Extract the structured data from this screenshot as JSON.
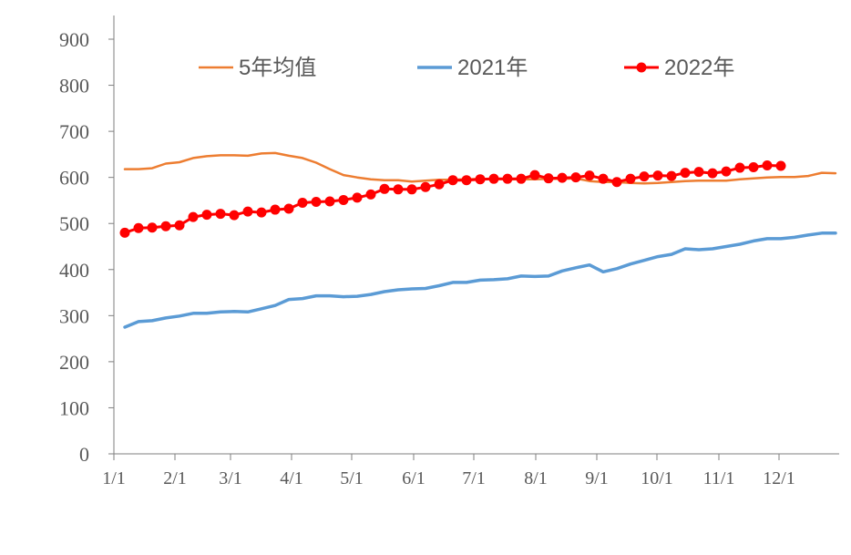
{
  "chart_data": {
    "type": "line",
    "title": "",
    "xlabel": "",
    "ylabel": "",
    "x_ticks": [
      "1/1",
      "2/1",
      "3/1",
      "4/1",
      "5/1",
      "6/1",
      "7/1",
      "8/1",
      "9/1",
      "10/1",
      "11/1",
      "12/1"
    ],
    "y_ticks": [
      "0",
      "100",
      "200",
      "300",
      "400",
      "500",
      "600",
      "700",
      "800",
      "900"
    ],
    "ylim": [
      0,
      900
    ],
    "x_unit": "week",
    "xlim": [
      1,
      53
    ],
    "grid": false,
    "legend_position": "top",
    "series": [
      {
        "name": "5年均值",
        "color": "#ED7D31",
        "marker": "none",
        "x": [
          1,
          2,
          3,
          4,
          5,
          6,
          7,
          8,
          9,
          10,
          11,
          12,
          13,
          14,
          15,
          16,
          17,
          18,
          19,
          20,
          21,
          22,
          23,
          24,
          25,
          26,
          27,
          28,
          29,
          30,
          31,
          32,
          33,
          34,
          35,
          36,
          37,
          38,
          39,
          40,
          41,
          42,
          43,
          44,
          45,
          46,
          47,
          48,
          49,
          50,
          51,
          52,
          53
        ],
        "values": [
          618,
          618,
          620,
          630,
          633,
          642,
          646,
          648,
          648,
          647,
          652,
          653,
          647,
          642,
          632,
          618,
          605,
          600,
          596,
          594,
          594,
          591,
          593,
          595,
          595,
          596,
          597,
          597,
          596,
          596,
          596,
          597,
          597,
          598,
          592,
          590,
          590,
          588,
          587,
          588,
          590,
          592,
          593,
          593,
          593,
          596,
          598,
          600,
          601,
          601,
          603,
          610,
          609
        ]
      },
      {
        "name": "2021年",
        "color": "#5B9BD5",
        "marker": "none",
        "x": [
          1,
          2,
          3,
          4,
          5,
          6,
          7,
          8,
          9,
          10,
          11,
          12,
          13,
          14,
          15,
          16,
          17,
          18,
          19,
          20,
          21,
          22,
          23,
          24,
          25,
          26,
          27,
          28,
          29,
          30,
          31,
          32,
          33,
          34,
          35,
          36,
          37,
          38,
          39,
          40,
          41,
          42,
          43,
          44,
          45,
          46,
          47,
          48,
          49,
          50,
          51,
          52,
          53
        ],
        "values": [
          275,
          287,
          289,
          295,
          299,
          305,
          305,
          308,
          309,
          308,
          315,
          322,
          335,
          337,
          343,
          343,
          341,
          342,
          346,
          352,
          356,
          358,
          359,
          365,
          372,
          372,
          377,
          378,
          380,
          386,
          385,
          386,
          397,
          404,
          410,
          395,
          402,
          412,
          420,
          428,
          433,
          445,
          443,
          445,
          450,
          455,
          462,
          467,
          467,
          470,
          475,
          479,
          479
        ]
      },
      {
        "name": "2022年",
        "color": "#FF0000",
        "marker": "circle",
        "x": [
          1,
          2,
          3,
          4,
          5,
          6,
          7,
          8,
          9,
          10,
          11,
          12,
          13,
          14,
          15,
          16,
          17,
          18,
          19,
          20,
          21,
          22,
          23,
          24,
          25,
          26,
          27,
          28,
          29,
          30,
          31,
          32,
          33,
          34,
          35,
          36,
          37,
          38,
          39,
          40,
          41,
          42,
          43,
          44,
          45,
          46,
          47,
          48,
          49
        ],
        "values": [
          480,
          490,
          491,
          494,
          496,
          514,
          519,
          521,
          518,
          526,
          524,
          530,
          532,
          545,
          547,
          548,
          551,
          556,
          563,
          575,
          574,
          574,
          579,
          585,
          594,
          594,
          596,
          597,
          597,
          597,
          605,
          598,
          599,
          600,
          604,
          597,
          590,
          597,
          602,
          604,
          603,
          610,
          612,
          609,
          613,
          621,
          622,
          626,
          625
        ]
      }
    ]
  }
}
